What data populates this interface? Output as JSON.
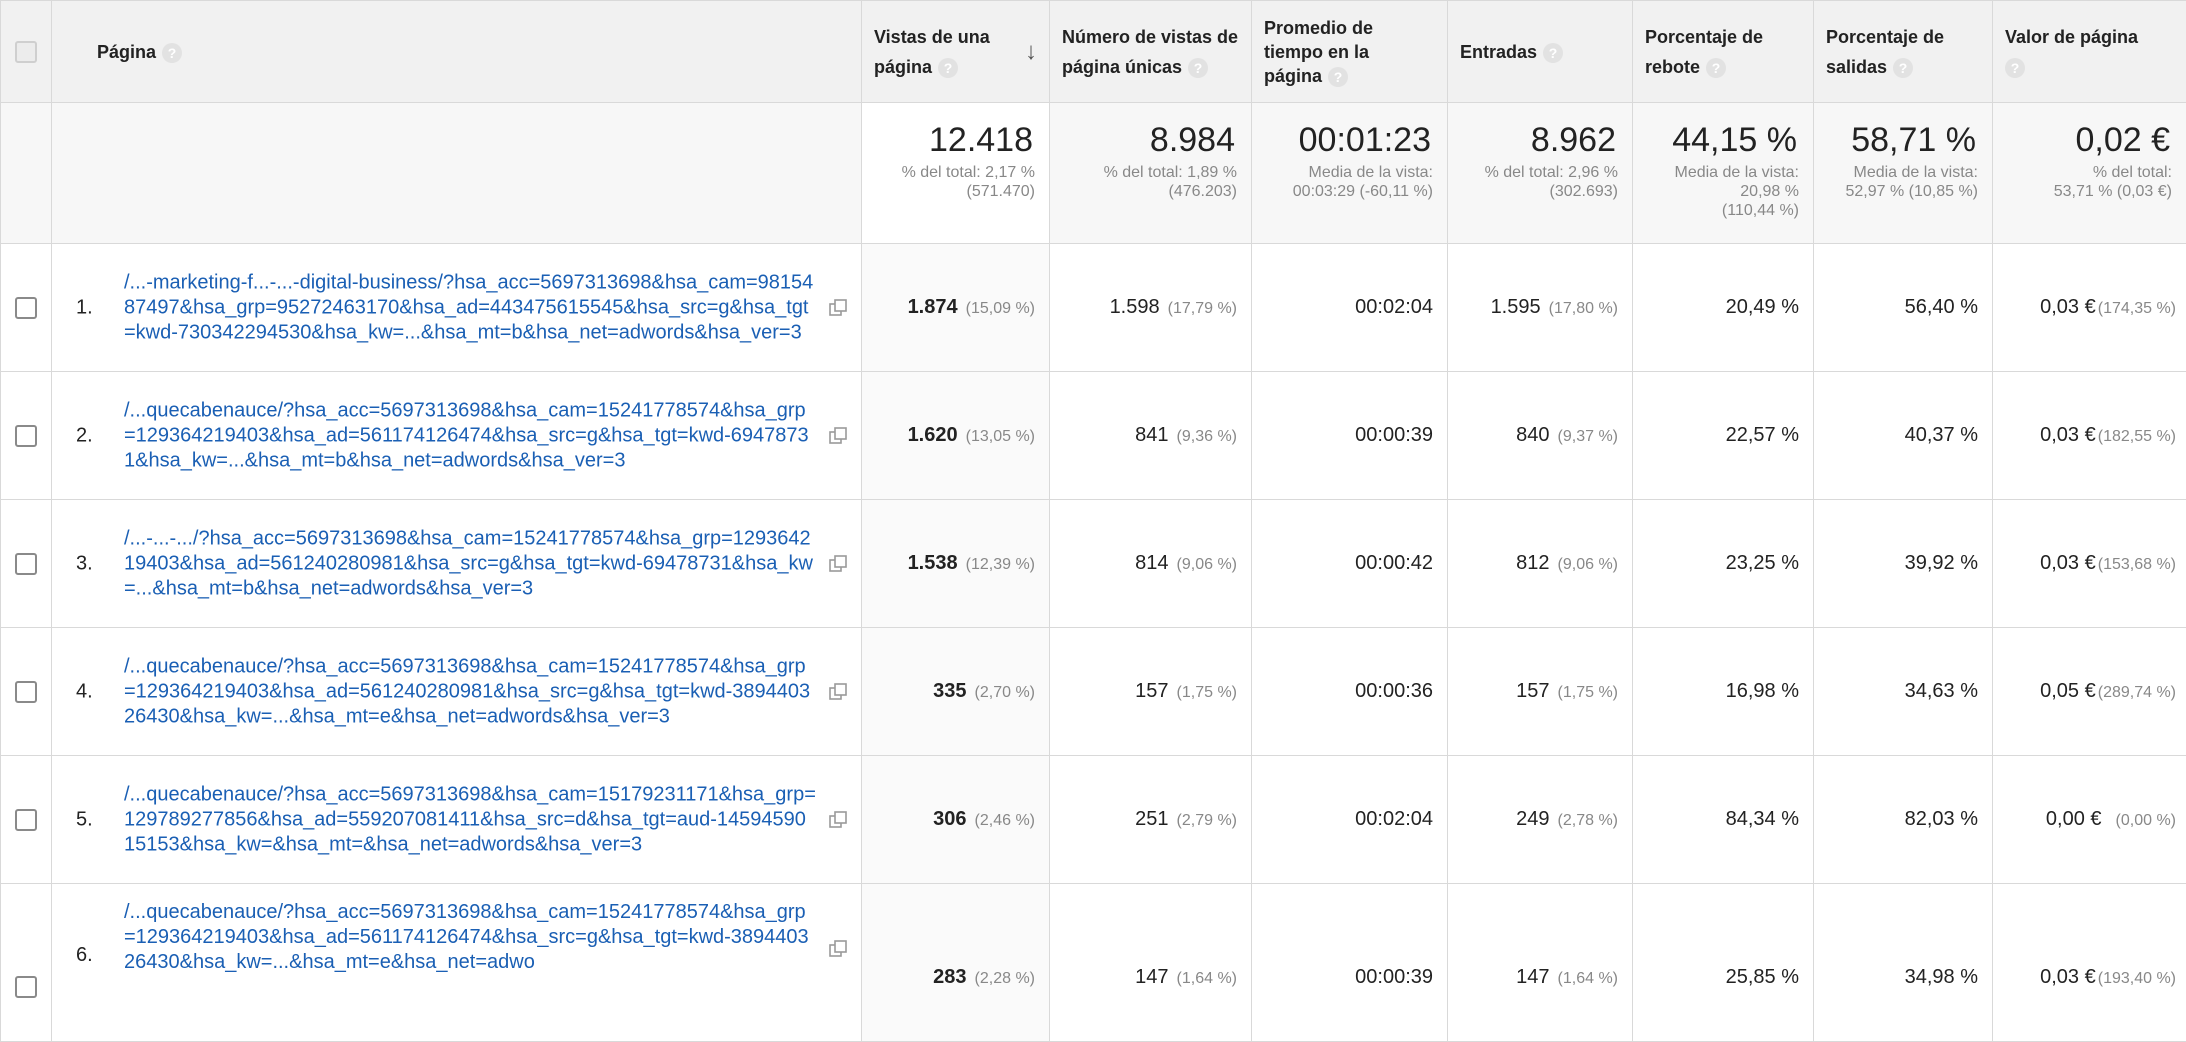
{
  "header": {
    "page": "Página",
    "views": [
      "Vistas de una",
      "página"
    ],
    "unique": [
      "Número de vistas de",
      "página únicas"
    ],
    "time": [
      "Promedio de",
      "tiempo en la",
      "página"
    ],
    "entradas": "Entradas",
    "rebote": [
      "Porcentaje de",
      "rebote"
    ],
    "salidas": [
      "Porcentaje de",
      "salidas"
    ],
    "valor": [
      "Valor de página"
    ],
    "help_glyph": "?",
    "sort_glyph": "↓"
  },
  "summary": {
    "views": {
      "main": "12.418",
      "sub": [
        "% del total: 2,17 %",
        "(571.470)"
      ]
    },
    "unique": {
      "main": "8.984",
      "sub": [
        "% del total: 1,89 %",
        "(476.203)"
      ]
    },
    "time": {
      "main": "00:01:23",
      "sub": [
        "Media de la vista:",
        "00:03:29 (-60,11 %)"
      ]
    },
    "entradas": {
      "main": "8.962",
      "sub": [
        "% del total: 2,96 %",
        "(302.693)"
      ]
    },
    "rebote": {
      "main": "44,15 %",
      "sub": [
        "Media de la vista:",
        "20,98 %",
        "(110,44 %)"
      ]
    },
    "salidas": {
      "main": "58,71 %",
      "sub": [
        "Media de la vista:",
        "52,97 % (10,85 %)"
      ]
    },
    "valor": {
      "main": "0,02 €",
      "sub": [
        "% del total:",
        "53,71 % (0,03 €)"
      ]
    }
  },
  "rows": [
    {
      "index": "1.",
      "page": "/...-marketing-f...-...-digital-business/?hsa_acc=5697313698&hsa_cam=9815487497&hsa_grp=95272463170&hsa_ad=443475615545&hsa_src=g&hsa_tgt=kwd-730342294530&hsa_kw=...&hsa_mt=b&hsa_net=adwords&hsa_ver=3",
      "views": "1.874",
      "views_pct": "(15,09 %)",
      "unique": "1.598",
      "unique_pct": "(17,79 %)",
      "time": "00:02:04",
      "entradas": "1.595",
      "entradas_pct": "(17,80 %)",
      "rebote": "20,49 %",
      "salidas": "56,40 %",
      "valor": "0,03 €",
      "valor_pct": "(174,35 %)"
    },
    {
      "index": "2.",
      "page": "/...quecabenauce/?hsa_acc=5697313698&hsa_cam=15241778574&hsa_grp=129364219403&hsa_ad=561174126474&hsa_src=g&hsa_tgt=kwd-69478731&hsa_kw=...&hsa_mt=b&hsa_net=adwords&hsa_ver=3",
      "views": "1.620",
      "views_pct": "(13,05 %)",
      "unique": "841",
      "unique_pct": "(9,36 %)",
      "time": "00:00:39",
      "entradas": "840",
      "entradas_pct": "(9,37 %)",
      "rebote": "22,57 %",
      "salidas": "40,37 %",
      "valor": "0,03 €",
      "valor_pct": "(182,55 %)"
    },
    {
      "index": "3.",
      "page": "/...-...-.../?hsa_acc=5697313698&hsa_cam=15241778574&hsa_grp=129364219403&hsa_ad=561240280981&hsa_src=g&hsa_tgt=kwd-69478731&hsa_kw=...&hsa_mt=b&hsa_net=adwords&hsa_ver=3",
      "views": "1.538",
      "views_pct": "(12,39 %)",
      "unique": "814",
      "unique_pct": "(9,06 %)",
      "time": "00:00:42",
      "entradas": "812",
      "entradas_pct": "(9,06 %)",
      "rebote": "23,25 %",
      "salidas": "39,92 %",
      "valor": "0,03 €",
      "valor_pct": "(153,68 %)"
    },
    {
      "index": "4.",
      "page": "/...quecabenauce/?hsa_acc=5697313698&hsa_cam=15241778574&hsa_grp=129364219403&hsa_ad=561240280981&hsa_src=g&hsa_tgt=kwd-389440326430&hsa_kw=...&hsa_mt=e&hsa_net=adwords&hsa_ver=3",
      "views": "335",
      "views_pct": "(2,70 %)",
      "unique": "157",
      "unique_pct": "(1,75 %)",
      "time": "00:00:36",
      "entradas": "157",
      "entradas_pct": "(1,75 %)",
      "rebote": "16,98 %",
      "salidas": "34,63 %",
      "valor": "0,05 €",
      "valor_pct": "(289,74 %)"
    },
    {
      "index": "5.",
      "page": "/...quecabenauce/?hsa_acc=5697313698&hsa_cam=15179231171&hsa_grp=129789277856&hsa_ad=559207081411&hsa_src=d&hsa_tgt=aud-1459459015153&hsa_kw=&hsa_mt=&hsa_net=adwords&hsa_ver=3",
      "views": "306",
      "views_pct": "(2,46 %)",
      "unique": "251",
      "unique_pct": "(2,79 %)",
      "time": "00:02:04",
      "entradas": "249",
      "entradas_pct": "(2,78 %)",
      "rebote": "84,34 %",
      "salidas": "82,03 %",
      "valor": "0,00 €",
      "valor_pct": "(0,00 %)"
    },
    {
      "index": "6.",
      "page": "/...quecabenauce/?hsa_acc=5697313698&hsa_cam=15241778574&hsa_grp=129364219403&hsa_ad=561174126474&hsa_src=g&hsa_tgt=kwd-389440326430&hsa_kw=...&hsa_mt=e&hsa_net=adwo",
      "views": "283",
      "views_pct": "(2,28 %)",
      "unique": "147",
      "unique_pct": "(1,64 %)",
      "time": "00:00:39",
      "entradas": "147",
      "entradas_pct": "(1,64 %)",
      "rebote": "25,85 %",
      "salidas": "34,98 %",
      "valor": "0,03 €",
      "valor_pct": "(193,40 %)"
    }
  ]
}
